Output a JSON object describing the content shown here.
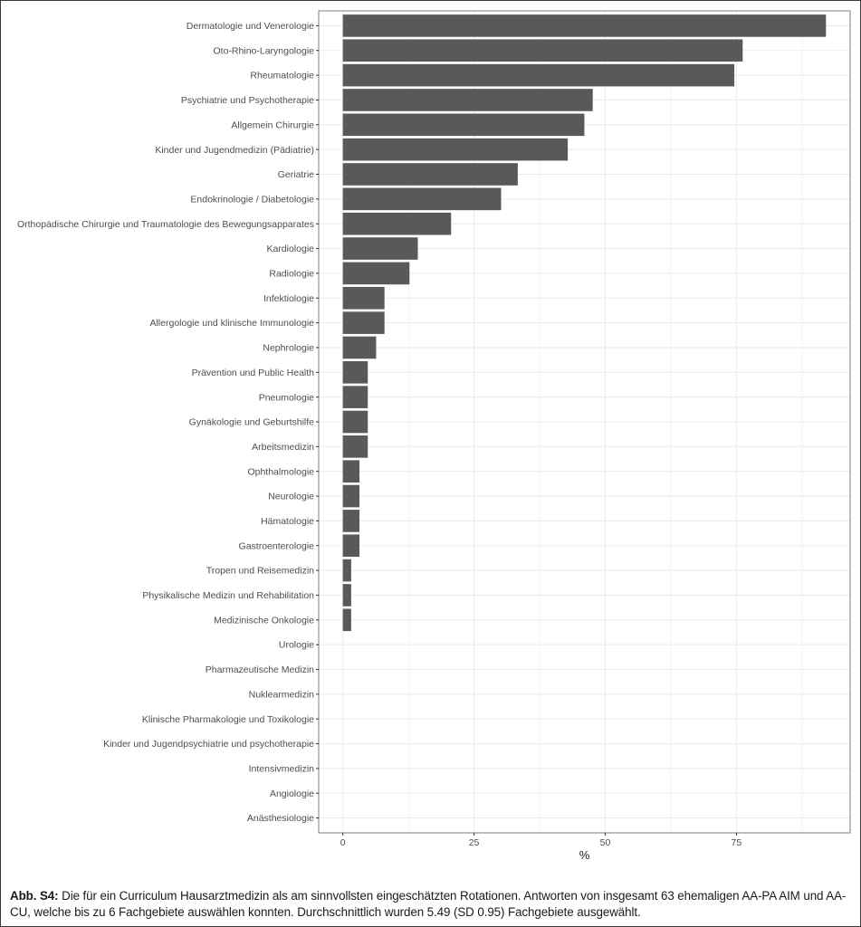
{
  "chart_data": {
    "type": "bar",
    "orientation": "horizontal",
    "title": "",
    "xlabel": "%",
    "ylabel": "",
    "xlim": [
      -4.6,
      96.67
    ],
    "x_ticks": [
      0,
      25,
      50,
      75
    ],
    "x_tick_labels": [
      "0",
      "25",
      "50",
      "75"
    ],
    "x_minor_grid": [
      12.5,
      37.5,
      62.5,
      87.5
    ],
    "grid": true,
    "legend": "none",
    "bar_color": "#595959",
    "categories": [
      "Dermatologie und Venerologie",
      "Oto-Rhino-Laryngologie",
      "Rheumatologie",
      "Psychiatrie und Psychotherapie",
      "Allgemein Chirurgie",
      "Kinder und Jugendmedizin (Pädiatrie)",
      "Geriatrie",
      "Endokrinologie / Diabetologie",
      "Orthopädische Chirurgie und Traumatologie des Bewegungsapparates",
      "Kardiologie",
      "Radiologie",
      "Infektiologie",
      "Allergologie und klinische Immunologie",
      "Nephrologie",
      "Prävention und Public Health",
      "Pneumologie",
      "Gynäkologie und Geburtshilfe",
      "Arbeitsmedizin",
      "Ophthalmologie",
      "Neurologie",
      "Hämatologie",
      "Gastroenterologie",
      "Tropen und Reisemedizin",
      "Physikalische Medizin und Rehabilitation",
      "Medizinische Onkologie",
      "Urologie",
      "Pharmazeutische Medizin",
      "Nuklearmedizin",
      "Klinische Pharmakologie und Toxikologie",
      "Kinder und Jugendpsychiatrie und psychotherapie",
      "Intensivmedizin",
      "Angiologie",
      "Anästhesiologie"
    ],
    "values": [
      92.06,
      76.19,
      74.6,
      47.62,
      46.03,
      42.86,
      33.33,
      30.16,
      20.63,
      14.29,
      12.7,
      7.94,
      7.94,
      6.35,
      4.76,
      4.76,
      4.76,
      4.76,
      3.17,
      3.17,
      3.17,
      3.17,
      1.59,
      1.59,
      1.59,
      0,
      0,
      0,
      0,
      0,
      0,
      0,
      0
    ]
  },
  "caption": {
    "label": "Abb. S4:",
    "text": " Die für ein Curriculum Hausarztmedizin als am sinnvollsten eingeschätzten Rotationen. Antworten von insgesamt 63 ehemaligen AA-PA AIM und AA-CU, welche bis zu 6 Fachgebiete auswählen konnten. Durchschnittlich wurden 5.49 (SD 0.95) Fachgebiete ausgewählt."
  }
}
